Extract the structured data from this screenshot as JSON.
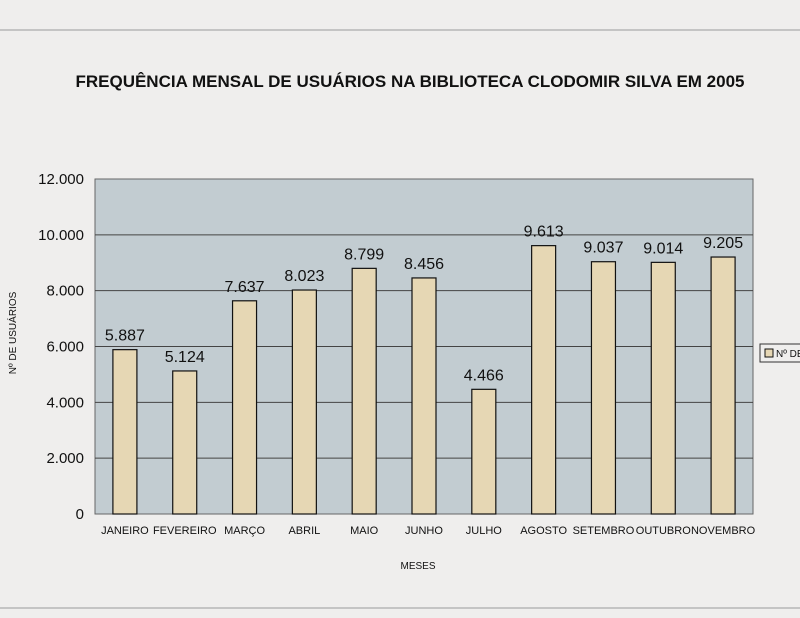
{
  "chart_data": {
    "type": "bar",
    "title": "FREQUÊNCIA MENSAL DE USUÁRIOS NA BIBLIOTECA CLODOMIR SILVA EM 2005",
    "xlabel": "MESES",
    "ylabel": "Nº DE USUÁRIOS",
    "categories": [
      "JANEIRO",
      "FEVEREIRO",
      "MARÇO",
      "ABRIL",
      "MAIO",
      "JUNHO",
      "JULHO",
      "AGOSTO",
      "SETEMBRO",
      "OUTUBRO",
      "NOVEMBRO"
    ],
    "values": [
      5887,
      5124,
      7637,
      8023,
      8799,
      8456,
      4466,
      9613,
      9037,
      9014,
      9205
    ],
    "data_labels": [
      "5.887",
      "5.124",
      "7.637",
      "8.023",
      "8.799",
      "8.456",
      "4.466",
      "9.613",
      "9.037",
      "9.014",
      "9.205"
    ],
    "ylim": [
      0,
      12000
    ],
    "yticks": [
      0,
      2000,
      4000,
      6000,
      8000,
      10000,
      12000
    ],
    "ytick_labels": [
      "0",
      "2.000",
      "4.000",
      "6.000",
      "8.000",
      "10.000",
      "12.000"
    ],
    "grid": true,
    "legend": {
      "text": "Nº DE",
      "placement": "right"
    },
    "colors": {
      "bar": "#e6d7b4",
      "bar_stroke": "#111111",
      "plot_bg": "#c2ccd1",
      "page_bg": "#efeeed"
    }
  }
}
